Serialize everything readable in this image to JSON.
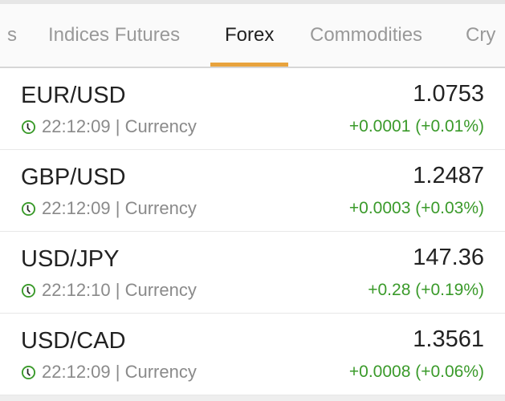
{
  "tabs": [
    {
      "label": "s",
      "active": false
    },
    {
      "label": "Indices Futures",
      "active": false
    },
    {
      "label": "Forex",
      "active": true
    },
    {
      "label": "Commodities",
      "active": false
    },
    {
      "label": "Cry",
      "active": false
    }
  ],
  "colors": {
    "accent": "#e8a33d",
    "positive": "#3a9a2a"
  },
  "quotes": [
    {
      "name": "EUR/USD",
      "price": "1.0753",
      "time": "22:12:09",
      "separator": "|",
      "type": "Currency",
      "change": "+0.0001 (+0.01%)"
    },
    {
      "name": "GBP/USD",
      "price": "1.2487",
      "time": "22:12:09",
      "separator": "|",
      "type": "Currency",
      "change": "+0.0003 (+0.03%)"
    },
    {
      "name": "USD/JPY",
      "price": "147.36",
      "time": "22:12:10",
      "separator": "|",
      "type": "Currency",
      "change": "+0.28 (+0.19%)"
    },
    {
      "name": "USD/CAD",
      "price": "1.3561",
      "time": "22:12:09",
      "separator": "|",
      "type": "Currency",
      "change": "+0.0008 (+0.06%)"
    }
  ],
  "icons": {
    "time": "clock-icon"
  }
}
